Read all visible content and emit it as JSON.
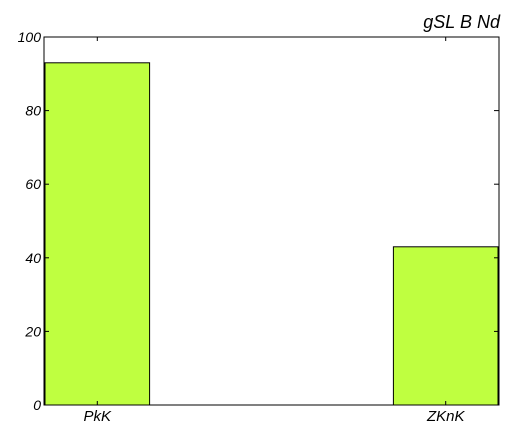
{
  "chart_data": {
    "type": "bar",
    "title": "gSL B  Nd",
    "xlabel": "",
    "ylabel": "",
    "categories": [
      "PkK",
      "ZKnK"
    ],
    "values": [
      93,
      43
    ],
    "ylim": [
      0,
      100
    ],
    "yticks": [
      "0",
      "20",
      "40",
      "60",
      "80",
      "100"
    ],
    "grid": false,
    "legend": "none",
    "bar_color": "#bfff40",
    "edge_color": "#000000"
  }
}
